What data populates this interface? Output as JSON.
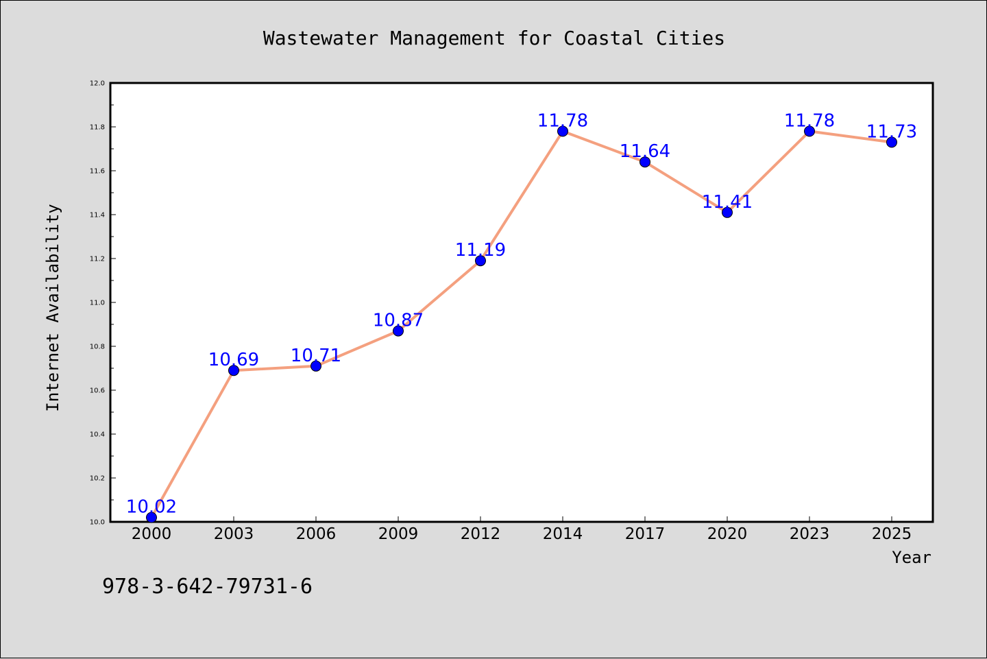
{
  "chart_data": {
    "type": "line",
    "title": "Wastewater Management for Coastal Cities",
    "xlabel": "Year",
    "ylabel": "Internet Availability",
    "categories": [
      "2000",
      "2003",
      "2006",
      "2009",
      "2012",
      "2014",
      "2017",
      "2020",
      "2023",
      "2025"
    ],
    "series": [
      {
        "values": [
          10.02,
          10.69,
          10.71,
          10.87,
          11.19,
          11.78,
          11.64,
          11.41,
          11.78,
          11.73
        ],
        "labels": [
          "10.02",
          "10.69",
          "10.71",
          "10.87",
          "11.19",
          "11.78",
          "11.64",
          "11.41",
          "11.78",
          "11.73"
        ],
        "line_color": "#f4a07f",
        "marker_color": "#0000ff"
      }
    ],
    "ylim": [
      10.0,
      12.0
    ],
    "yticks": [
      "10.0",
      "10.2",
      "10.4",
      "10.6",
      "10.8",
      "11.0",
      "11.2",
      "11.4",
      "11.6",
      "11.8",
      "12.0"
    ],
    "grid": false,
    "legend": "none"
  },
  "annotation": "978-3-642-79731-6",
  "colors": {
    "figure_background": "#dcdcdc",
    "plot_background": "#ffffff",
    "line": "#f4a07f",
    "marker": "#0000ff",
    "data_label": "#0000ff"
  }
}
